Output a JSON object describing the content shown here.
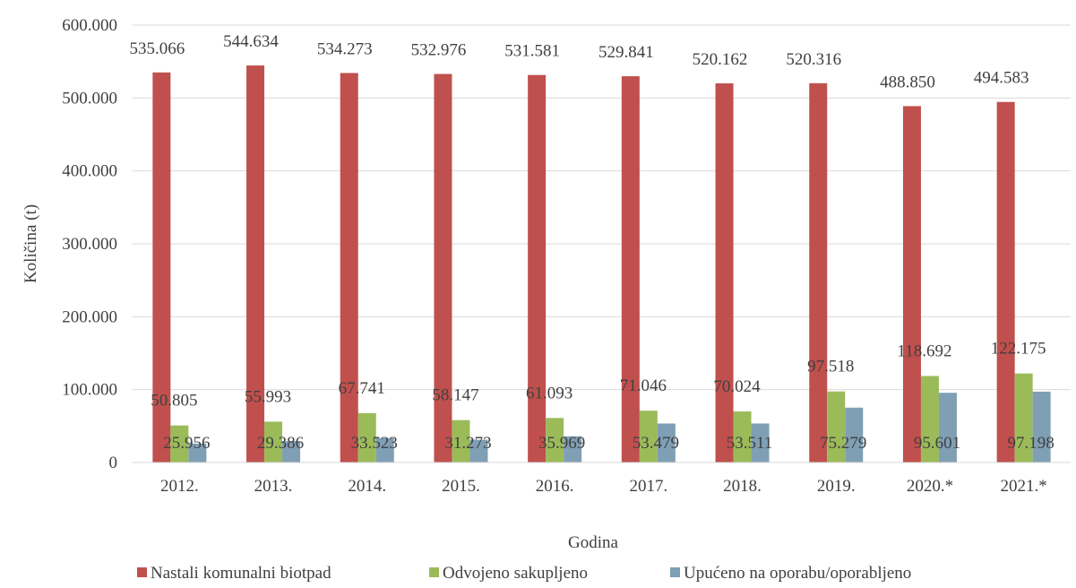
{
  "chart_data": {
    "type": "bar",
    "title": "",
    "xlabel": "Godina",
    "ylabel": "Količina (t)",
    "ylim": [
      0,
      600000
    ],
    "yticks": [
      {
        "value": 0,
        "label": "0"
      },
      {
        "value": 100000,
        "label": "100.000"
      },
      {
        "value": 200000,
        "label": "200.000"
      },
      {
        "value": 300000,
        "label": "300.000"
      },
      {
        "value": 400000,
        "label": "400.000"
      },
      {
        "value": 500000,
        "label": "500.000"
      },
      {
        "value": 600000,
        "label": "600.000"
      }
    ],
    "grid": true,
    "legend_position": "bottom",
    "categories": [
      "2012.",
      "2013.",
      "2014.",
      "2015.",
      "2016.",
      "2017.",
      "2018.",
      "2019.",
      "2020.*",
      "2021.*"
    ],
    "series": [
      {
        "name": "Nastali komunalni biotpad",
        "color": "#c0504d",
        "values": [
          535066,
          544634,
          534273,
          532976,
          531581,
          529841,
          520162,
          520316,
          488850,
          494583
        ],
        "labels": [
          "535.066",
          "544.634",
          "534.273",
          "532.976",
          "531.581",
          "529.841",
          "520.162",
          "520.316",
          "488.850",
          "494.583"
        ]
      },
      {
        "name": "Odvojeno sakupljeno",
        "color": "#9bbb59",
        "values": [
          50805,
          55993,
          67741,
          58147,
          61093,
          71046,
          70024,
          97518,
          118692,
          122175
        ],
        "labels": [
          "50.805",
          "55.993",
          "67.741",
          "58.147",
          "61.093",
          "71.046",
          "70.024",
          "97.518",
          "118.692",
          "122.175"
        ]
      },
      {
        "name": "Upućeno na oporabu/oporabljeno",
        "color": "#7f9fb5",
        "values": [
          25956,
          29386,
          33523,
          31273,
          35969,
          53479,
          53511,
          75279,
          95601,
          97198
        ],
        "labels": [
          "25.956",
          "29.386",
          "33.523",
          "31.273",
          "35.969",
          "53.479",
          "53.511",
          "75.279",
          "95.601",
          "97.198"
        ]
      }
    ]
  }
}
